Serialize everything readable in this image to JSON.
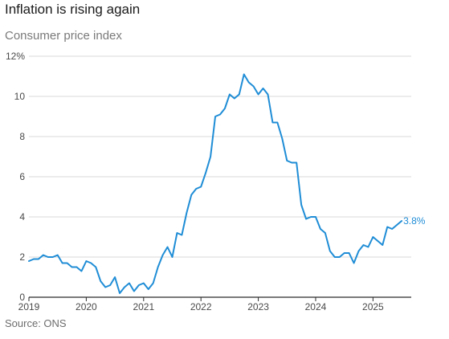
{
  "header": {
    "title": "Inflation is rising again",
    "subtitle": "Consumer price index"
  },
  "footer": {
    "source": "Source: ONS"
  },
  "colors": {
    "line": "#1f8dd6",
    "grid": "#d9d9d9",
    "axis": "#2b2b2b",
    "tick_text": "#4a4a4a"
  },
  "chart_data": {
    "type": "line",
    "title": "Inflation is rising again",
    "subtitle": "Consumer price index",
    "xlabel": "",
    "ylabel": "",
    "grid": "horizontal",
    "xlim": [
      2019.0,
      2025.667
    ],
    "ylim": [
      0,
      12
    ],
    "x_ticks": [
      2019,
      2020,
      2021,
      2022,
      2023,
      2024,
      2025
    ],
    "x_tick_labels": [
      "2019",
      "2020",
      "2021",
      "2022",
      "2023",
      "2024",
      "2025"
    ],
    "y_ticks": [
      0,
      2,
      4,
      6,
      8,
      10,
      12
    ],
    "y_tick_labels": [
      "0",
      "2",
      "4",
      "6",
      "8",
      "10",
      "12%"
    ],
    "annotation": {
      "text": "3.8%",
      "x": "2025-06",
      "y": 3.8
    },
    "series": [
      {
        "values": [
          {
            "x": "2019-01",
            "y": 1.8
          },
          {
            "x": "2019-02",
            "y": 1.9
          },
          {
            "x": "2019-03",
            "y": 1.9
          },
          {
            "x": "2019-04",
            "y": 2.1
          },
          {
            "x": "2019-05",
            "y": 2.0
          },
          {
            "x": "2019-06",
            "y": 2.0
          },
          {
            "x": "2019-07",
            "y": 2.1
          },
          {
            "x": "2019-08",
            "y": 1.7
          },
          {
            "x": "2019-09",
            "y": 1.7
          },
          {
            "x": "2019-10",
            "y": 1.5
          },
          {
            "x": "2019-11",
            "y": 1.5
          },
          {
            "x": "2019-12",
            "y": 1.3
          },
          {
            "x": "2020-01",
            "y": 1.8
          },
          {
            "x": "2020-02",
            "y": 1.7
          },
          {
            "x": "2020-03",
            "y": 1.5
          },
          {
            "x": "2020-04",
            "y": 0.8
          },
          {
            "x": "2020-05",
            "y": 0.5
          },
          {
            "x": "2020-06",
            "y": 0.6
          },
          {
            "x": "2020-07",
            "y": 1.0
          },
          {
            "x": "2020-08",
            "y": 0.2
          },
          {
            "x": "2020-09",
            "y": 0.5
          },
          {
            "x": "2020-10",
            "y": 0.7
          },
          {
            "x": "2020-11",
            "y": 0.3
          },
          {
            "x": "2020-12",
            "y": 0.6
          },
          {
            "x": "2021-01",
            "y": 0.7
          },
          {
            "x": "2021-02",
            "y": 0.4
          },
          {
            "x": "2021-03",
            "y": 0.7
          },
          {
            "x": "2021-04",
            "y": 1.5
          },
          {
            "x": "2021-05",
            "y": 2.1
          },
          {
            "x": "2021-06",
            "y": 2.5
          },
          {
            "x": "2021-07",
            "y": 2.0
          },
          {
            "x": "2021-08",
            "y": 3.2
          },
          {
            "x": "2021-09",
            "y": 3.1
          },
          {
            "x": "2021-10",
            "y": 4.2
          },
          {
            "x": "2021-11",
            "y": 5.1
          },
          {
            "x": "2021-12",
            "y": 5.4
          },
          {
            "x": "2022-01",
            "y": 5.5
          },
          {
            "x": "2022-02",
            "y": 6.2
          },
          {
            "x": "2022-03",
            "y": 7.0
          },
          {
            "x": "2022-04",
            "y": 9.0
          },
          {
            "x": "2022-05",
            "y": 9.1
          },
          {
            "x": "2022-06",
            "y": 9.4
          },
          {
            "x": "2022-07",
            "y": 10.1
          },
          {
            "x": "2022-08",
            "y": 9.9
          },
          {
            "x": "2022-09",
            "y": 10.1
          },
          {
            "x": "2022-10",
            "y": 11.1
          },
          {
            "x": "2022-11",
            "y": 10.7
          },
          {
            "x": "2022-12",
            "y": 10.5
          },
          {
            "x": "2023-01",
            "y": 10.1
          },
          {
            "x": "2023-02",
            "y": 10.4
          },
          {
            "x": "2023-03",
            "y": 10.1
          },
          {
            "x": "2023-04",
            "y": 8.7
          },
          {
            "x": "2023-05",
            "y": 8.7
          },
          {
            "x": "2023-06",
            "y": 7.9
          },
          {
            "x": "2023-07",
            "y": 6.8
          },
          {
            "x": "2023-08",
            "y": 6.7
          },
          {
            "x": "2023-09",
            "y": 6.7
          },
          {
            "x": "2023-10",
            "y": 4.6
          },
          {
            "x": "2023-11",
            "y": 3.9
          },
          {
            "x": "2023-12",
            "y": 4.0
          },
          {
            "x": "2024-01",
            "y": 4.0
          },
          {
            "x": "2024-02",
            "y": 3.4
          },
          {
            "x": "2024-03",
            "y": 3.2
          },
          {
            "x": "2024-04",
            "y": 2.3
          },
          {
            "x": "2024-05",
            "y": 2.0
          },
          {
            "x": "2024-06",
            "y": 2.0
          },
          {
            "x": "2024-07",
            "y": 2.2
          },
          {
            "x": "2024-08",
            "y": 2.2
          },
          {
            "x": "2024-09",
            "y": 1.7
          },
          {
            "x": "2024-10",
            "y": 2.3
          },
          {
            "x": "2024-11",
            "y": 2.6
          },
          {
            "x": "2024-12",
            "y": 2.5
          },
          {
            "x": "2025-01",
            "y": 3.0
          },
          {
            "x": "2025-02",
            "y": 2.8
          },
          {
            "x": "2025-03",
            "y": 2.6
          },
          {
            "x": "2025-04",
            "y": 3.5
          },
          {
            "x": "2025-05",
            "y": 3.4
          },
          {
            "x": "2025-06",
            "y": 3.6
          },
          {
            "x": "2025-07",
            "y": 3.8
          }
        ]
      }
    ]
  }
}
